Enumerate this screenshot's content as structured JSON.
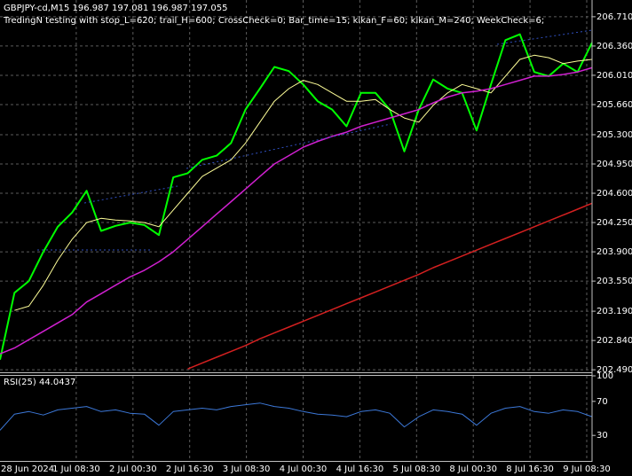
{
  "chart_data": [
    {
      "type": "line",
      "title": "GBPJPY-cd,M15  196.987 197.081 196.987 197.055",
      "subtitle": "TredingN testing with stop_L=620; trail_H=600; CrossCheck=0; Bar_time=15; kikan_F=60; kikan_M=240; WeekCheck=6;",
      "ylim": [
        202.46,
        206.91
      ],
      "yticks": [
        {
          "value": 206.71,
          "label": "206.710"
        },
        {
          "value": 206.36,
          "label": "206.360"
        },
        {
          "value": 206.01,
          "label": "206.010"
        },
        {
          "value": 205.66,
          "label": "205.660"
        },
        {
          "value": 205.3,
          "label": "205.300"
        },
        {
          "value": 204.95,
          "label": "204.950"
        },
        {
          "value": 204.6,
          "label": "204.600"
        },
        {
          "value": 204.25,
          "label": "204.250"
        },
        {
          "value": 203.9,
          "label": "203.900"
        },
        {
          "value": 203.55,
          "label": "203.550"
        },
        {
          "value": 203.19,
          "label": "203.190"
        },
        {
          "value": 202.84,
          "label": "202.840"
        },
        {
          "value": 202.49,
          "label": "202.490"
        }
      ],
      "grid": true,
      "series": [
        {
          "color": "#00ff00",
          "width": 2,
          "values": [
            202.61,
            203.41,
            203.55,
            203.9,
            204.2,
            204.37,
            204.63,
            204.15,
            204.21,
            204.25,
            204.22,
            204.1,
            204.79,
            204.84,
            205.0,
            205.05,
            205.2,
            205.6,
            205.85,
            206.11,
            206.06,
            205.9,
            205.7,
            205.6,
            205.4,
            205.8,
            205.8,
            205.6,
            205.1,
            205.6,
            205.96,
            205.85,
            205.8,
            205.35,
            205.9,
            206.43,
            206.5,
            206.05,
            206.0,
            206.15,
            206.05,
            206.4
          ]
        },
        {
          "color": "#ffff99",
          "width": 1,
          "values": [
            null,
            203.2,
            203.25,
            203.5,
            203.8,
            204.05,
            204.25,
            204.3,
            204.28,
            204.27,
            204.25,
            204.2,
            204.4,
            204.6,
            204.8,
            204.9,
            205.0,
            205.2,
            205.45,
            205.7,
            205.85,
            205.95,
            205.9,
            205.8,
            205.7,
            205.7,
            205.72,
            205.6,
            205.5,
            205.45,
            205.65,
            205.8,
            205.9,
            205.85,
            205.8,
            206.0,
            206.2,
            206.25,
            206.22,
            206.15,
            206.18,
            206.2
          ]
        },
        {
          "color": "#d020d0",
          "width": 1.5,
          "values": [
            202.68,
            202.75,
            202.85,
            202.95,
            203.05,
            203.15,
            203.3,
            203.4,
            203.5,
            203.6,
            203.68,
            203.78,
            203.9,
            204.05,
            204.2,
            204.35,
            204.5,
            204.65,
            204.8,
            204.95,
            205.05,
            205.15,
            205.22,
            205.28,
            205.33,
            205.4,
            205.45,
            205.5,
            205.55,
            205.6,
            205.68,
            205.75,
            205.8,
            205.82,
            205.85,
            205.9,
            205.95,
            206.0,
            206.0,
            206.02,
            206.05,
            206.1
          ]
        },
        {
          "color": "#d42020",
          "width": 1.5,
          "values": [
            null,
            null,
            null,
            null,
            null,
            null,
            null,
            null,
            null,
            null,
            null,
            null,
            null,
            202.5,
            202.57,
            202.64,
            202.71,
            202.78,
            202.86,
            202.93,
            203.0,
            203.07,
            203.14,
            203.21,
            203.28,
            203.35,
            203.42,
            203.49,
            203.56,
            203.63,
            203.71,
            203.78,
            203.85,
            203.92,
            203.99,
            204.06,
            204.13,
            204.2,
            204.27,
            204.34,
            204.41,
            204.48
          ]
        }
      ]
    },
    {
      "type": "line",
      "title": "RSI(25) 44.0437",
      "ylim": [
        0,
        100
      ],
      "yticks": [
        100,
        70,
        30
      ],
      "x_labels": [
        "28 Jun 2024",
        "1 Jul 08:30",
        "2 Jul 00:30",
        "2 Jul 16:30",
        "3 Jul 08:30",
        "4 Jul 00:30",
        "4 Jul 16:30",
        "5 Jul 08:30",
        "8 Jul 00:30",
        "8 Jul 16:30",
        "9 Jul 08:30"
      ],
      "series": [
        {
          "color": "#3c78d8",
          "width": 1,
          "values": [
            36,
            55,
            58,
            54,
            60,
            62,
            64,
            58,
            60,
            56,
            55,
            42,
            58,
            60,
            62,
            60,
            64,
            66,
            68,
            64,
            62,
            58,
            55,
            54,
            52,
            58,
            60,
            56,
            40,
            52,
            60,
            58,
            55,
            42,
            56,
            62,
            64,
            58,
            56,
            60,
            58,
            52
          ]
        }
      ]
    }
  ]
}
